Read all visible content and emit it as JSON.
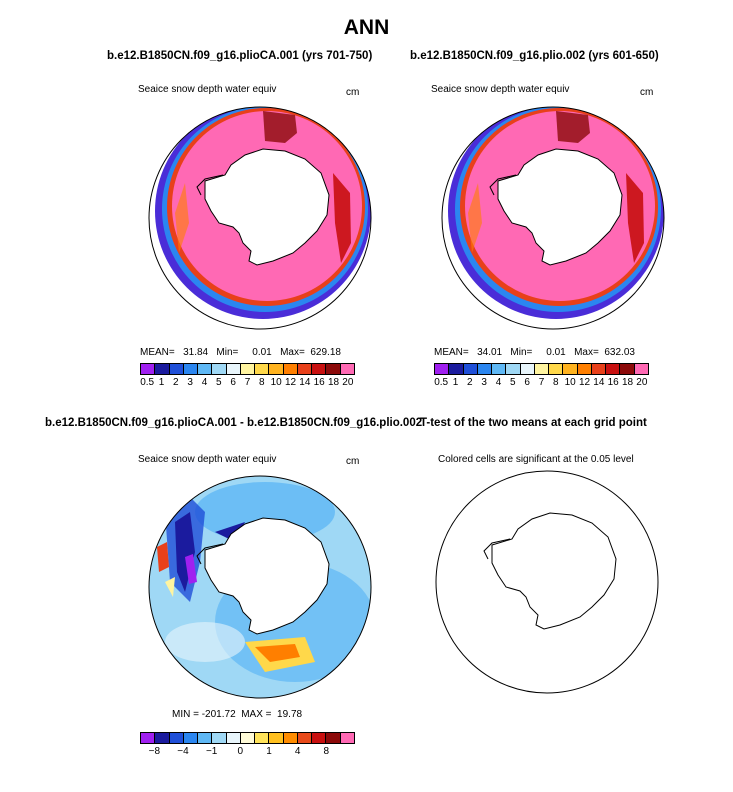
{
  "title": "ANN",
  "panels": [
    {
      "title": "b.e12.B1850CN.f09_g16.plioCA.001 (yrs 701-750)",
      "variable": "Seaice snow depth water equiv",
      "units": "cm",
      "stats": "MEAN=   31.84   Min=     0.01   Max=  629.18"
    },
    {
      "title": "b.e12.B1850CN.f09_g16.plio.002 (yrs 601-650)",
      "variable": "Seaice snow depth water equiv",
      "units": "cm",
      "stats": "MEAN=   34.01   Min=     0.01   Max=  632.03"
    },
    {
      "title": "b.e12.B1850CN.f09_g16.plioCA.001 - b.e12.B1850CN.f09_g16.plio.002",
      "variable": "Seaice snow depth water equiv",
      "units": "cm",
      "stats": "MIN = -201.72  MAX =  19.78"
    },
    {
      "title": "T-test of the two means at each grid point",
      "variable": "Colored cells are significant at the 0.05 level",
      "units": "",
      "stats": ""
    }
  ],
  "colorbar_abs": {
    "colors": [
      "#a020f0",
      "#1b1b9e",
      "#1f4fd8",
      "#2b86f0",
      "#5fb8f5",
      "#9fd8f5",
      "#e8f5fb",
      "#fff4a0",
      "#ffd84a",
      "#ffb31f",
      "#ff7f00",
      "#e8401a",
      "#c81010",
      "#8c0a0a",
      "#ff69b4"
    ],
    "labels": [
      "0.5",
      "1",
      "2",
      "3",
      "4",
      "5",
      "6",
      "7",
      "8",
      "10",
      "12",
      "14",
      "16",
      "18",
      "20"
    ]
  },
  "colorbar_diff": {
    "colors": [
      "#a020f0",
      "#1b1b9e",
      "#1f4fd8",
      "#2b86f0",
      "#5fb8f5",
      "#9fd8f5",
      "#e8f5fb",
      "#fffbd8",
      "#ffe35a",
      "#ffc020",
      "#ff8c00",
      "#e84a1a",
      "#c81010",
      "#8c0a0a",
      "#ff69b4"
    ],
    "labels": [
      "−8",
      "−4",
      "−1",
      "0",
      "1",
      "4",
      "8"
    ]
  }
}
